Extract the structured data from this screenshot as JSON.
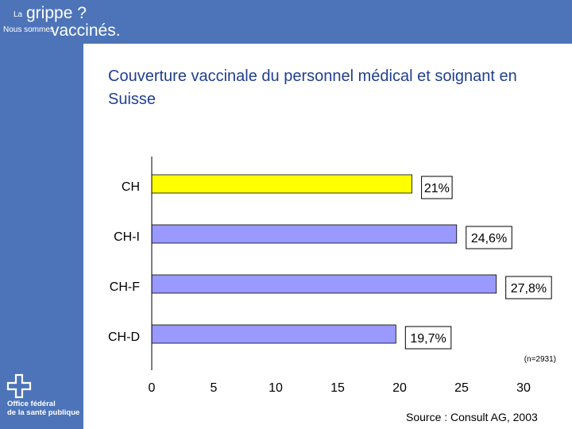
{
  "branding": {
    "line1_small": "La",
    "line1_big": "grippe ?",
    "line2_small": "Nous sommes",
    "line2_big": "vaccinés.",
    "office_line1": "Office fédéral",
    "office_line2": "de la santé publique"
  },
  "colors": {
    "frame_blue": "#4d74b8",
    "title_blue": "#213f8f",
    "bar_default": "#9999ff",
    "bar_highlight": "#ffff00"
  },
  "chart_data": {
    "type": "bar",
    "orientation": "horizontal",
    "title": "Couverture vaccinale du personnel médical et soignant en Suisse",
    "categories": [
      "CH",
      "CH-I",
      "CH-F",
      "CH-D"
    ],
    "values": [
      21,
      24.6,
      27.8,
      19.7
    ],
    "value_labels": [
      "21%",
      "24,6%",
      "27,8%",
      "19,7%"
    ],
    "bar_colors": [
      "#ffff00",
      "#9999ff",
      "#9999ff",
      "#9999ff"
    ],
    "xlim": [
      0,
      30
    ],
    "x_ticks": [
      "0",
      "5",
      "10",
      "15",
      "20",
      "25",
      "30"
    ],
    "x_tick_values": [
      0,
      5,
      10,
      15,
      20,
      25,
      30
    ],
    "note": "(n=2931)",
    "grid": false,
    "legend": "none"
  },
  "source": "Source : Consult AG, 2003"
}
